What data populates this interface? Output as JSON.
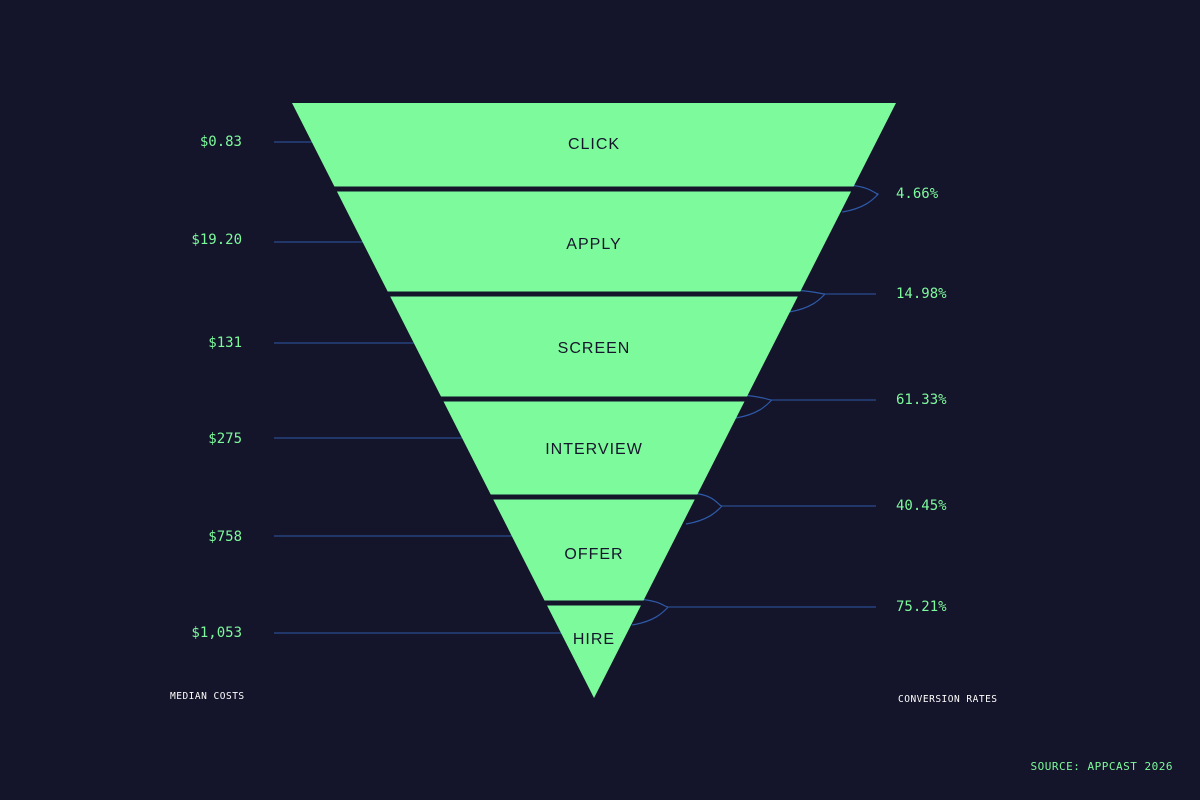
{
  "chart_data": {
    "type": "funnel",
    "stages": [
      "CLICK",
      "APPLY",
      "SCREEN",
      "INTERVIEW",
      "OFFER",
      "HIRE"
    ],
    "median_costs": [
      "$0.83",
      "$19.20",
      "$131",
      "$275",
      "$758",
      "$1,053"
    ],
    "conversion_rates": [
      "4.66%",
      "14.98%",
      "61.33%",
      "40.45%",
      "75.21%"
    ],
    "left_caption": "MEDIAN COSTS",
    "right_caption": "CONVERSION RATES",
    "source": "SOURCE: APPCAST 2026"
  },
  "colors": {
    "background": "#14142a",
    "funnel_fill": "#7dfa9c",
    "stage_text": "#15152b",
    "value_text": "#7dfa9c",
    "leader_line": "#2f5aa8",
    "caption_text": "#ffffff"
  }
}
